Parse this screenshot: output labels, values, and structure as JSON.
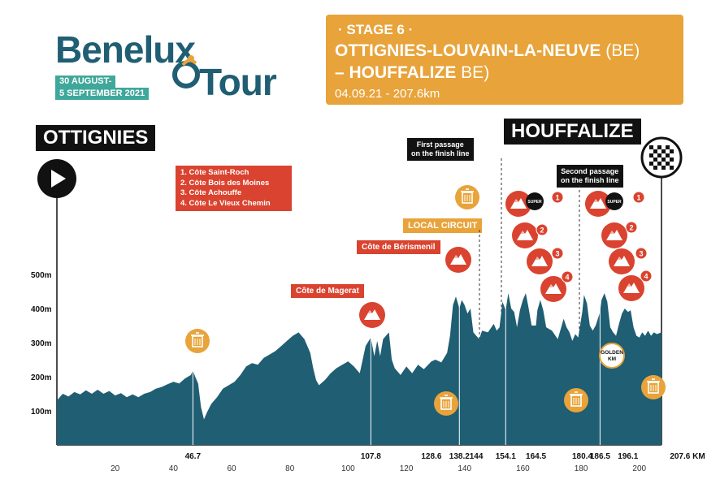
{
  "logo": {
    "brand_top": "Benelux",
    "brand_bottom": "Tour",
    "dates_line1": "30 AUGUST-",
    "dates_line2": "5 SEPTEMBER 2021"
  },
  "stage": {
    "number": "· STAGE 6 ·",
    "route_start": "OTTIGNIES-LOUVAIN-LA-NEUVE",
    "route_start_country": " (BE)",
    "route_end": "– HOUFFALIZE",
    "route_end_country": " BE)",
    "info": "04.09.21 - 207.6km"
  },
  "start_place": "OTTIGNIES",
  "finish_place": "HOUFFALIZE",
  "legend": {
    "items": [
      "1. Côte Saint-Roch",
      "2. Côte Bois des Moines",
      "3. Côte Achouffe",
      "4. Côte Le Vieux Chemin"
    ]
  },
  "annotations": {
    "first_passage": "First passage\non the finish line",
    "second_passage": "Second passage\non the finish line",
    "local_circuit": "LOCAL CIRCUIT",
    "climb_magerat": "Côte de Magerat",
    "climb_berismenil": "Côte de Bérismenil",
    "golden_km": "GOLDEN\nKM",
    "super8": "SUPER"
  },
  "colors": {
    "profile": "#1f5e73",
    "red": "#d9432f",
    "orange": "#e8a33a",
    "teal": "#3fa89a",
    "black": "#111111"
  },
  "chart_data": {
    "type": "area",
    "title": "",
    "xlabel": "",
    "ylabel": "",
    "unit_x": "KM",
    "xlim": [
      0,
      207.6
    ],
    "ylim": [
      0,
      550
    ],
    "y_ticks": [
      {
        "value": 100,
        "label": "100m"
      },
      {
        "value": 200,
        "label": "200m"
      },
      {
        "value": 300,
        "label": "300m"
      },
      {
        "value": 400,
        "label": "400m"
      },
      {
        "value": 500,
        "label": "500m"
      }
    ],
    "x_ticks": [
      20,
      40,
      60,
      80,
      100,
      120,
      140,
      160,
      180,
      200
    ],
    "x_markers": [
      46.7,
      107.8,
      128.6,
      138.2,
      144,
      154.1,
      164.5,
      180.4,
      186.5,
      196.1
    ],
    "x_end_label": "207.6 KM",
    "elevation": [
      [
        0,
        130
      ],
      [
        2,
        150
      ],
      [
        4,
        142
      ],
      [
        6,
        155
      ],
      [
        8,
        148
      ],
      [
        10,
        160
      ],
      [
        12,
        150
      ],
      [
        14,
        162
      ],
      [
        16,
        150
      ],
      [
        18,
        158
      ],
      [
        20,
        145
      ],
      [
        22,
        152
      ],
      [
        24,
        140
      ],
      [
        26,
        148
      ],
      [
        28,
        140
      ],
      [
        30,
        150
      ],
      [
        32,
        155
      ],
      [
        34,
        165
      ],
      [
        36,
        170
      ],
      [
        38,
        178
      ],
      [
        40,
        185
      ],
      [
        42,
        180
      ],
      [
        44,
        195
      ],
      [
        46,
        205
      ],
      [
        46.7,
        218
      ],
      [
        47.5,
        200
      ],
      [
        48.5,
        180
      ],
      [
        49.5,
        110
      ],
      [
        50.5,
        75
      ],
      [
        51.5,
        95
      ],
      [
        53,
        120
      ],
      [
        55,
        140
      ],
      [
        57,
        165
      ],
      [
        59,
        175
      ],
      [
        61,
        185
      ],
      [
        63,
        205
      ],
      [
        65,
        230
      ],
      [
        67,
        240
      ],
      [
        69,
        235
      ],
      [
        71,
        255
      ],
      [
        73,
        265
      ],
      [
        75,
        275
      ],
      [
        77,
        290
      ],
      [
        79,
        305
      ],
      [
        81,
        320
      ],
      [
        83,
        330
      ],
      [
        85,
        310
      ],
      [
        87,
        270
      ],
      [
        88,
        225
      ],
      [
        89,
        190
      ],
      [
        90,
        175
      ],
      [
        92,
        190
      ],
      [
        94,
        210
      ],
      [
        96,
        225
      ],
      [
        98,
        235
      ],
      [
        100,
        245
      ],
      [
        102,
        230
      ],
      [
        104,
        210
      ],
      [
        106,
        290
      ],
      [
        107.8,
        315
      ],
      [
        109,
        260
      ],
      [
        110,
        305
      ],
      [
        111,
        260
      ],
      [
        112,
        310
      ],
      [
        114,
        330
      ],
      [
        115,
        250
      ],
      [
        116,
        225
      ],
      [
        118,
        205
      ],
      [
        120,
        230
      ],
      [
        122,
        210
      ],
      [
        124,
        235
      ],
      [
        126,
        222
      ],
      [
        128.6,
        245
      ],
      [
        130,
        250
      ],
      [
        132,
        242
      ],
      [
        134,
        270
      ],
      [
        135,
        320
      ],
      [
        136,
        410
      ],
      [
        137,
        435
      ],
      [
        138.2,
        400
      ],
      [
        139,
        425
      ],
      [
        140,
        410
      ],
      [
        141,
        385
      ],
      [
        142,
        400
      ],
      [
        143,
        330
      ],
      [
        144,
        320
      ],
      [
        145,
        310
      ],
      [
        146,
        335
      ],
      [
        148,
        330
      ],
      [
        150,
        355
      ],
      [
        151,
        335
      ],
      [
        152,
        345
      ],
      [
        153,
        420
      ],
      [
        154.1,
        395
      ],
      [
        155,
        445
      ],
      [
        156,
        400
      ],
      [
        157,
        390
      ],
      [
        158,
        345
      ],
      [
        159,
        395
      ],
      [
        160,
        425
      ],
      [
        161,
        445
      ],
      [
        162,
        400
      ],
      [
        163,
        350
      ],
      [
        164.5,
        350
      ],
      [
        165,
        395
      ],
      [
        166,
        425
      ],
      [
        167,
        395
      ],
      [
        168,
        345
      ],
      [
        170,
        335
      ],
      [
        172,
        310
      ],
      [
        174,
        370
      ],
      [
        175,
        345
      ],
      [
        176,
        330
      ],
      [
        177,
        305
      ],
      [
        178,
        325
      ],
      [
        179,
        315
      ],
      [
        180.4,
        390
      ],
      [
        181,
        440
      ],
      [
        182,
        415
      ],
      [
        183,
        350
      ],
      [
        184,
        335
      ],
      [
        185,
        350
      ],
      [
        186.5,
        390
      ],
      [
        187,
        425
      ],
      [
        188,
        445
      ],
      [
        189,
        420
      ],
      [
        190,
        345
      ],
      [
        191,
        330
      ],
      [
        192,
        320
      ],
      [
        193,
        355
      ],
      [
        194,
        385
      ],
      [
        195,
        400
      ],
      [
        196.1,
        390
      ],
      [
        197,
        395
      ],
      [
        198,
        345
      ],
      [
        199,
        320
      ],
      [
        200,
        315
      ],
      [
        201,
        330
      ],
      [
        202,
        320
      ],
      [
        203,
        335
      ],
      [
        204,
        320
      ],
      [
        205,
        330
      ],
      [
        206,
        325
      ],
      [
        207.6,
        330
      ]
    ]
  }
}
